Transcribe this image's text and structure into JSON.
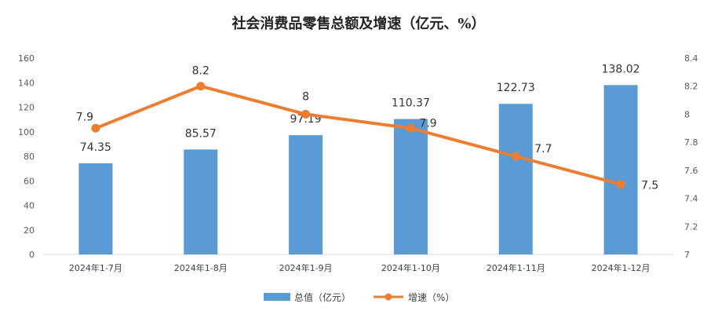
{
  "chart_data": {
    "type": "bar",
    "title": "社会消费品零售总额及增速（亿元、%）",
    "categories": [
      "2024年1-7月",
      "2024年1-8月",
      "2024年1-9月",
      "2024年1-10月",
      "2024年1-11月",
      "2024年1-12月"
    ],
    "series": [
      {
        "name": "总值（亿元）",
        "type": "bar",
        "axis": "left",
        "color": "#5B9BD5",
        "values": [
          74.35,
          85.57,
          97.19,
          110.37,
          122.73,
          138.02
        ],
        "value_labels": [
          "74.35",
          "85.57",
          "97.19",
          "110.37",
          "122.73",
          "138.02"
        ]
      },
      {
        "name": "增速（%）",
        "type": "line",
        "axis": "right",
        "color": "#ED7D31",
        "values": [
          7.9,
          8.2,
          8.0,
          7.9,
          7.7,
          7.5
        ],
        "value_labels": [
          "7.9",
          "8.2",
          "8",
          "7.9",
          "7.7",
          "7.5"
        ]
      }
    ],
    "y_left": {
      "range": [
        0,
        160
      ],
      "ticks": [
        0,
        20,
        40,
        60,
        80,
        100,
        120,
        140,
        160
      ],
      "tick_labels": [
        "0",
        "20",
        "40",
        "60",
        "80",
        "100",
        "120",
        "140",
        "160"
      ]
    },
    "y_right": {
      "range": [
        7,
        8.4
      ],
      "ticks": [
        7,
        7.2,
        7.4,
        7.6,
        7.8,
        8,
        8.2,
        8.4
      ],
      "tick_labels": [
        "7",
        "7.2",
        "7.4",
        "7.6",
        "7.8",
        "8",
        "8.2",
        "8.4"
      ]
    },
    "grid": false,
    "legend": "bottom"
  }
}
